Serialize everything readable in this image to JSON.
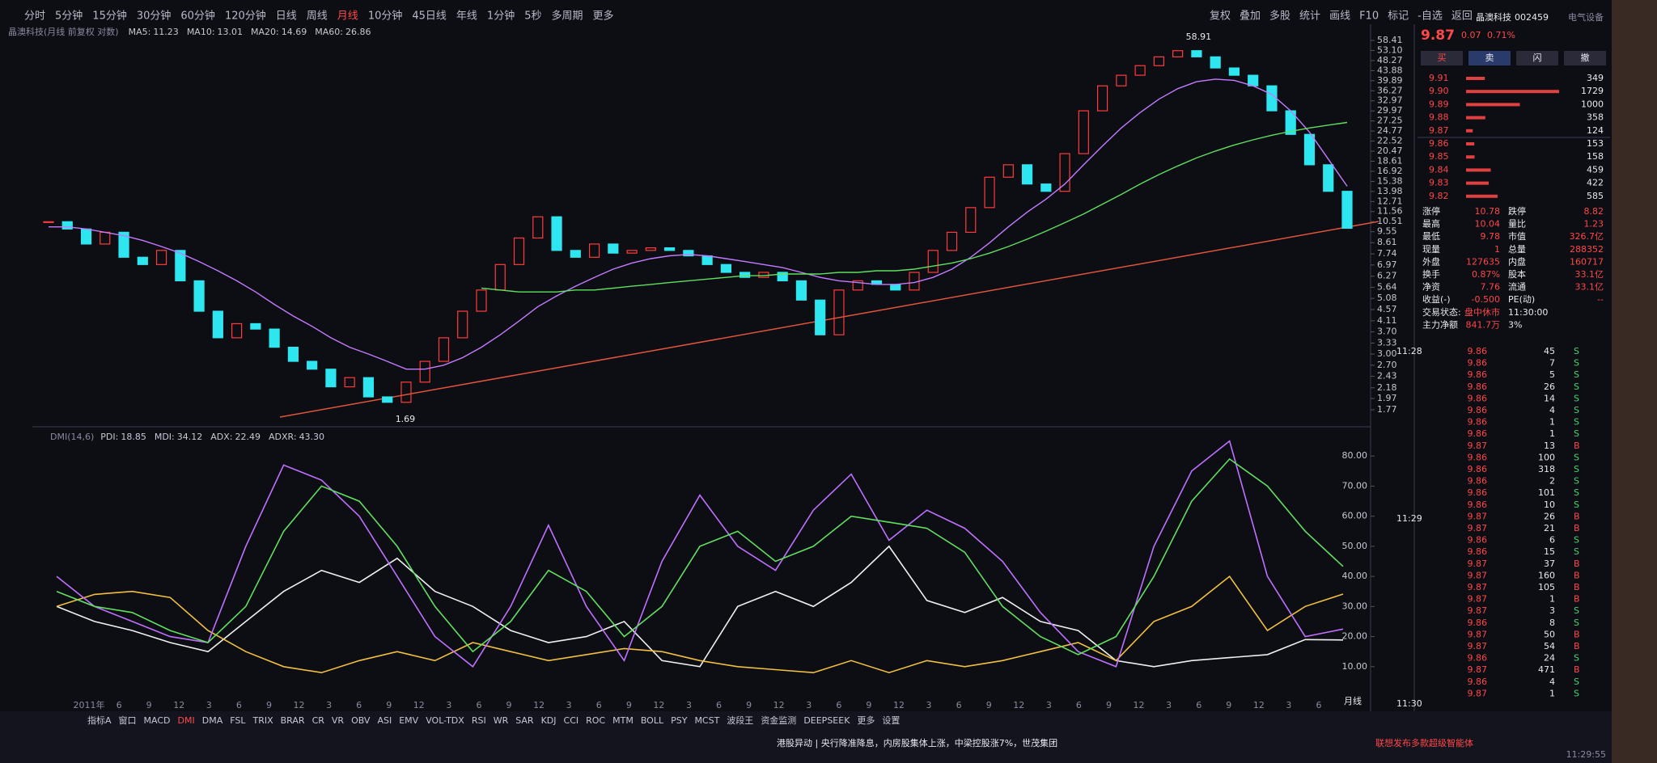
{
  "toolbar": {
    "periods": [
      "分时",
      "5分钟",
      "15分钟",
      "30分钟",
      "60分钟",
      "120分钟",
      "日线",
      "周线",
      "月线",
      "10分钟",
      "45日线",
      "年线",
      "1分钟",
      "5秒",
      "多周期",
      "更多"
    ],
    "tools": [
      "复权",
      "叠加",
      "多股",
      "统计",
      "画线",
      "F10",
      "标记",
      "-自选",
      "返回"
    ]
  },
  "chart_data": [
    {
      "type": "candlestick",
      "title": "晶澳科技(月线 前复权 对数)",
      "legend": [
        {
          "name": "MA5:",
          "current": "11.23",
          "color": "#ffffff"
        },
        {
          "name": "MA10:",
          "current": "13.01",
          "color": "#f0d040"
        },
        {
          "name": "MA20:",
          "current": "14.69",
          "color": "#c37bff",
          "values": [
            10,
            10,
            9.8,
            9.5,
            9.2,
            8.8,
            8.3,
            7.8,
            7.2,
            6.6,
            6.0,
            5.4,
            4.8,
            4.3,
            3.9,
            3.5,
            3.2,
            3.0,
            2.8,
            2.6,
            2.6,
            2.7,
            2.9,
            3.2,
            3.6,
            4.1,
            4.7,
            5.2,
            5.7,
            6.2,
            6.7,
            7.1,
            7.4,
            7.6,
            7.7,
            7.6,
            7.4,
            7.2,
            7.0,
            6.8,
            6.5,
            6.2,
            6.0,
            5.9,
            5.8,
            5.8,
            5.9,
            6.2,
            6.7,
            7.5,
            8.6,
            10,
            11.5,
            13,
            15,
            18,
            21.5,
            25.5,
            29.5,
            33.5,
            37,
            39.5,
            40.5,
            40,
            38,
            35,
            30,
            24.5,
            19,
            14.69
          ]
        },
        {
          "name": "MA60:",
          "current": "26.86",
          "color": "#5fe05f",
          "values": [
            null,
            null,
            null,
            null,
            null,
            null,
            null,
            null,
            null,
            null,
            null,
            null,
            null,
            null,
            null,
            null,
            null,
            null,
            null,
            null,
            null,
            null,
            null,
            5.6,
            5.5,
            5.4,
            5.4,
            5.4,
            5.5,
            5.5,
            5.6,
            5.7,
            5.8,
            5.9,
            6.0,
            6.1,
            6.2,
            6.3,
            6.3,
            6.4,
            6.4,
            6.4,
            6.5,
            6.5,
            6.6,
            6.6,
            6.7,
            6.9,
            7.1,
            7.4,
            7.8,
            8.3,
            8.9,
            9.6,
            10.4,
            11.3,
            12.4,
            13.6,
            15,
            16.4,
            17.8,
            19.2,
            20.5,
            21.7,
            22.8,
            23.8,
            24.7,
            25.5,
            26.2,
            26.86
          ]
        }
      ],
      "values": [
        10.5,
        9.8,
        8.5,
        9.5,
        7.5,
        7.0,
        8.0,
        6.0,
        4.5,
        3.5,
        4.0,
        3.8,
        3.2,
        2.8,
        2.6,
        2.2,
        2.4,
        2.0,
        1.9,
        2.3,
        2.8,
        3.5,
        4.5,
        5.5,
        7.0,
        9.0,
        11.0,
        8.0,
        7.5,
        8.5,
        7.8,
        8.0,
        8.2,
        8.0,
        7.6,
        7.0,
        6.5,
        6.2,
        6.5,
        6.0,
        5.0,
        3.6,
        5.5,
        6.0,
        5.8,
        5.5,
        6.5,
        8.0,
        9.5,
        12.0,
        16.0,
        18.0,
        15.0,
        14.0,
        20.0,
        30.0,
        38.0,
        42.0,
        46.0,
        50.0,
        53.0,
        50.0,
        45.0,
        42.0,
        38.0,
        30.0,
        24.0,
        18.0,
        14.0,
        9.87
      ],
      "up_color": "#ff3c3c",
      "down_color": "#2ee6f0",
      "log": true,
      "ylim": [
        1.77,
        58.41
      ],
      "yticks": [
        58.41,
        {
          "value": 53.1,
          "label": "53.10"
        },
        48.27,
        43.88,
        39.89,
        36.27,
        32.97,
        29.97,
        27.25,
        24.77,
        22.52,
        20.47,
        18.61,
        16.92,
        15.38,
        13.98,
        12.71,
        11.56,
        10.51,
        9.55,
        8.61,
        7.74,
        6.97,
        6.27,
        5.64,
        5.08,
        4.57,
        4.11,
        {
          "value": 3.7,
          "label": "3.70"
        },
        3.33,
        {
          "value": 3,
          "label": "3.00"
        },
        {
          "value": 2.7,
          "label": "2.70"
        },
        2.43,
        2.18,
        1.97,
        1.77
      ],
      "high_label": 58.91,
      "low_label": 1.69
    },
    {
      "type": "line",
      "title": "DMI(14,6)",
      "ylim": [
        0,
        90
      ],
      "yticks": [
        {
          "value": 80,
          "label": "80.00"
        },
        {
          "value": 70,
          "label": "70.00"
        },
        {
          "value": 60,
          "label": "60.00"
        },
        {
          "value": 50,
          "label": "50.00"
        },
        {
          "value": 40,
          "label": "40.00"
        },
        {
          "value": 30,
          "label": "30.00"
        },
        {
          "value": 20,
          "label": "20.00"
        },
        {
          "value": 10,
          "label": "10.00"
        }
      ],
      "series": [
        {
          "name": "PDI:",
          "current": "18.85",
          "color": "#f0f0f0",
          "values": [
            30,
            25,
            22,
            18,
            15,
            25,
            35,
            42,
            38,
            46,
            35,
            30,
            22,
            18,
            20,
            25,
            12,
            10,
            30,
            35,
            30,
            38,
            50,
            32,
            28,
            33,
            25,
            22,
            12,
            10,
            12,
            13,
            14,
            19,
            18.85
          ]
        },
        {
          "name": "MDI:",
          "current": "34.12",
          "color": "#f0c040",
          "values": [
            30,
            34,
            35,
            33,
            22,
            15,
            10,
            8,
            12,
            15,
            12,
            18,
            15,
            12,
            14,
            16,
            15,
            12,
            10,
            9,
            8,
            12,
            8,
            12,
            10,
            12,
            15,
            18,
            12,
            25,
            30,
            40,
            22,
            30,
            34.12
          ]
        },
        {
          "name": "ADX:",
          "current": "22.49",
          "color": "#c070ff",
          "values": [
            40,
            30,
            25,
            20,
            18,
            50,
            77,
            72,
            60,
            40,
            20,
            10,
            30,
            57,
            30,
            12,
            45,
            67,
            50,
            42,
            62,
            74,
            52,
            62,
            56,
            45,
            28,
            15,
            10,
            50,
            75,
            85,
            40,
            20,
            22.49
          ]
        },
        {
          "name": "ADXR:",
          "current": "43.30",
          "color": "#60e060",
          "values": [
            35,
            30,
            28,
            22,
            18,
            30,
            55,
            70,
            65,
            50,
            30,
            15,
            25,
            42,
            35,
            20,
            30,
            50,
            55,
            45,
            50,
            60,
            58,
            56,
            48,
            30,
            20,
            14,
            20,
            40,
            65,
            79,
            70,
            55,
            43.3
          ]
        }
      ],
      "x_labels": [
        "2011年",
        "6",
        "9",
        "12",
        "3",
        "6",
        "9",
        "12",
        "3",
        "6",
        "9",
        "12",
        "3",
        "6",
        "9",
        "12",
        "3",
        "6",
        "9",
        "12",
        "3",
        "6",
        "9",
        "12",
        "3",
        "6",
        "9",
        "12",
        "3",
        "6",
        "9",
        "12",
        "3",
        "6",
        "9",
        "12",
        "3",
        "6",
        "9",
        "12",
        "3",
        "6"
      ],
      "period": "月线"
    }
  ],
  "quote": {
    "name": "晶澳科技",
    "code": "002459",
    "price": "9.87",
    "change": "0.07",
    "pct": "0.71%",
    "settings": "电气设备",
    "buttons": [
      "买",
      "卖",
      "闪",
      "撤"
    ],
    "asks": [
      {
        "price": "9.91",
        "volume": 349
      },
      {
        "price": "9.90",
        "volume": 1729
      },
      {
        "price": "9.89",
        "volume": 1000
      },
      {
        "price": "9.88",
        "volume": 358
      },
      {
        "price": "9.87",
        "volume": 124
      }
    ],
    "bids": [
      {
        "price": "9.86",
        "volume": 153
      },
      {
        "price": "9.85",
        "volume": 158
      },
      {
        "price": "9.84",
        "volume": 459
      },
      {
        "price": "9.83",
        "volume": 422
      },
      {
        "price": "9.82",
        "volume": 585
      }
    ],
    "stats": [
      [
        "涨停",
        "10.78",
        "跌停",
        "8.82"
      ],
      [
        "最高",
        "10.04",
        "量比",
        "1.23"
      ],
      [
        "最低",
        "9.78",
        "市值",
        "326.7亿"
      ],
      [
        "现量",
        "1",
        "总量",
        "288352"
      ],
      [
        "外盘",
        "127635",
        "内盘",
        "160717"
      ],
      [
        "换手",
        "0.87%",
        "股本",
        "33.1亿"
      ],
      [
        "净资",
        "7.76",
        "流通",
        "33.1亿"
      ],
      [
        "收益(-)",
        "-0.500",
        "PE(动)",
        "--"
      ],
      [
        "交易状态:",
        "盘中休市",
        "11:30:00",
        ""
      ],
      [
        "主力净额",
        "841.7万",
        "3%",
        ""
      ]
    ]
  },
  "trades": {
    "times": [
      "11:28",
      "11:29",
      "11:30"
    ],
    "rows": [
      [
        "9.86",
        "45",
        "S"
      ],
      [
        "9.86",
        "7",
        "S"
      ],
      [
        "9.86",
        "5",
        "S"
      ],
      [
        "9.86",
        "26",
        "S"
      ],
      [
        "9.86",
        "14",
        "S"
      ],
      [
        "9.86",
        "4",
        "S"
      ],
      [
        "9.86",
        "1",
        "S"
      ],
      [
        "9.86",
        "1",
        "S"
      ],
      [
        "9.87",
        "13",
        "B"
      ],
      [
        "9.86",
        "100",
        "S"
      ],
      [
        "9.86",
        "318",
        "S"
      ],
      [
        "9.86",
        "2",
        "S"
      ],
      [
        "9.86",
        "101",
        "S"
      ],
      [
        "9.86",
        "10",
        "S"
      ],
      [
        "9.87",
        "26",
        "B"
      ],
      [
        "9.87",
        "21",
        "B"
      ],
      [
        "9.86",
        "6",
        "S"
      ],
      [
        "9.86",
        "15",
        "S"
      ],
      [
        "9.87",
        "37",
        "B"
      ],
      [
        "9.87",
        "160",
        "B"
      ],
      [
        "9.87",
        "105",
        "B"
      ],
      [
        "9.87",
        "1",
        "B"
      ],
      [
        "9.87",
        "3",
        "S"
      ],
      [
        "9.86",
        "8",
        "S"
      ],
      [
        "9.87",
        "50",
        "B"
      ],
      [
        "9.87",
        "54",
        "B"
      ],
      [
        "9.86",
        "24",
        "S"
      ],
      [
        "9.87",
        "471",
        "B"
      ],
      [
        "9.86",
        "4",
        "S"
      ],
      [
        "9.87",
        "1",
        "S"
      ]
    ]
  },
  "indicator_tabs": [
    "指标A",
    "窗口",
    "MACD",
    "DMI",
    "DMA",
    "FSL",
    "TRIX",
    "BRAR",
    "CR",
    "VR",
    "OBV",
    "ASI",
    "EMV",
    "VOL-TDX",
    "RSI",
    "WR",
    "SAR",
    "KDJ",
    "CCI",
    "ROC",
    "MTM",
    "BOLL",
    "PSY",
    "MCST",
    "波段王",
    "资金监测",
    "DEEPSEEK",
    "更多",
    "设置"
  ],
  "status": [
    "港股异动 | 央行降准降息，内房股集体上涨，中梁控股涨7%，世茂集团",
    "联想发布多款超级智能体",
    "11:29:55"
  ]
}
